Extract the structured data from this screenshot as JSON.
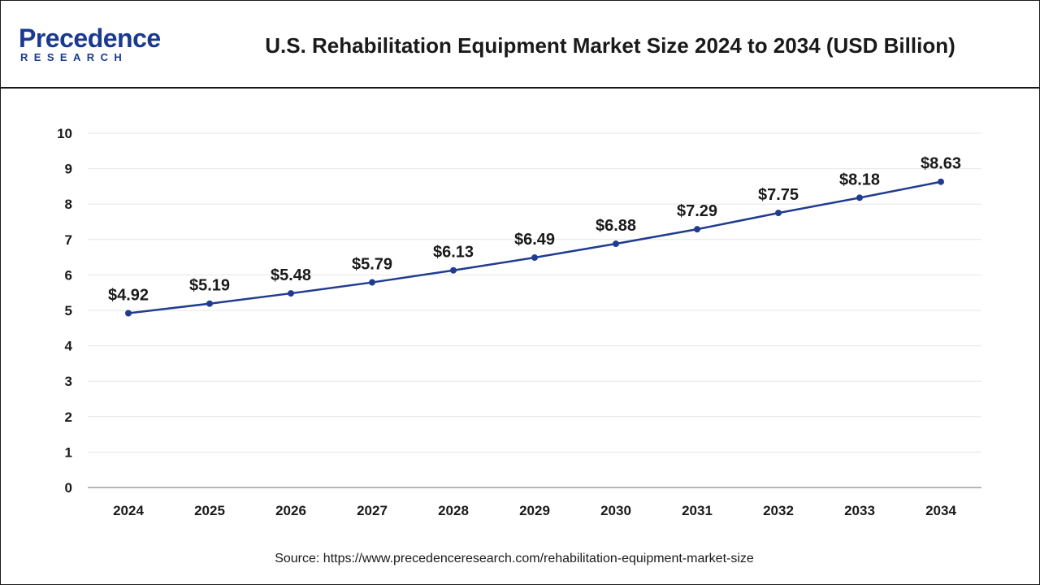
{
  "brand": {
    "name": "Precedence",
    "sub": "RESEARCH"
  },
  "colors": {
    "line": "#1f3c91",
    "axis": "#9e9e9e",
    "grid": "#e6e6e6",
    "text": "#1a1a1a"
  },
  "source": "Source: https://www.precedenceresearch.com/rehabilitation-equipment-market-size",
  "chart_data": {
    "type": "line",
    "title": "U.S. Rehabilitation Equipment Market Size 2024 to 2034 (USD Billion)",
    "xlabel": "",
    "ylabel": "",
    "categories": [
      "2024",
      "2025",
      "2026",
      "2027",
      "2028",
      "2029",
      "2030",
      "2031",
      "2032",
      "2033",
      "2034"
    ],
    "values": [
      4.92,
      5.19,
      5.48,
      5.79,
      6.13,
      6.49,
      6.88,
      7.29,
      7.75,
      8.18,
      8.63
    ],
    "data_labels": [
      "$4.92",
      "$5.19",
      "$5.48",
      "$5.79",
      "$6.13",
      "$6.49",
      "$6.88",
      "$7.29",
      "$7.75",
      "$8.18",
      "$8.63"
    ],
    "ylim": [
      0,
      10
    ],
    "yticks": [
      "0",
      "1",
      "2",
      "3",
      "4",
      "5",
      "6",
      "7",
      "8",
      "9",
      "10"
    ],
    "grid": true
  }
}
